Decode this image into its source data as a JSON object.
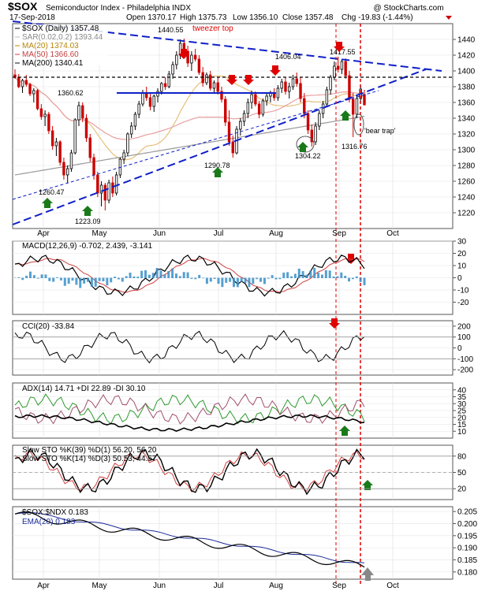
{
  "header": {
    "symbol": "$SOX",
    "name": "Semiconductor Index - Philadelphia INDX",
    "source": "@ StockCharts.com",
    "date": "17-Sep-2018",
    "open": "Open 1370.17",
    "high": "High 1375.73",
    "low": "Low 1356.10",
    "close": "Close 1357.48",
    "chg": "Chg -19.83 (-1.44%)"
  },
  "colors": {
    "up": "#000000",
    "down": "#cc0000",
    "sma20": "#e8c07a",
    "sma50": "#e8a0a0",
    "sma200": "#9a9a9a",
    "trend": "#1020c8",
    "arrow_red": "#e00000",
    "arrow_green": "#1a7a1a",
    "vline": "#dd0000",
    "macd_hist": "#3a8fc8",
    "cci_fill_pos": "#6a8a6a",
    "cci_fill_neg": "#a07070",
    "adx": "#000000",
    "pdi": "#2e9a2e",
    "mdi": "#a0506e",
    "sto_k": "#000000",
    "sto_d": "#d04040",
    "ema": "#1a2a9a"
  },
  "months": [
    "Apr",
    "May",
    "Jun",
    "Jul",
    "Aug",
    "Sep",
    "Oct"
  ],
  "chart_data": [
    {
      "type": "candlestick",
      "title": "$SOX (Daily) 1357.48",
      "ylim": [
        1200,
        1460
      ],
      "yticks": [
        1220,
        1240,
        1260,
        1280,
        1300,
        1320,
        1340,
        1360,
        1380,
        1400,
        1420,
        1440
      ],
      "legend": [
        {
          "label": "SAR(0.02,0.2) 1393.44",
          "color": "#bbbbbb"
        },
        {
          "label": "MA(20) 1374.03",
          "color": "#b8860b"
        },
        {
          "label": "MA(50) 1366.60",
          "color": "#c04040"
        },
        {
          "label": "MA(200) 1340.41",
          "color": "#000000"
        }
      ],
      "annotations": {
        "tweezer": "tweezer top",
        "bear_trap": "'bear trap'",
        "labels": [
          "1440.55",
          "1406.04",
          "1417.55",
          "1360.62",
          "1260.47",
          "1223.09",
          "1290.78",
          "1304.22",
          "1316.76"
        ]
      },
      "candles": [
        [
          1395,
          1402,
          1390,
          1392
        ],
        [
          1392,
          1396,
          1378,
          1380
        ],
        [
          1380,
          1390,
          1372,
          1388
        ],
        [
          1388,
          1395,
          1380,
          1383
        ],
        [
          1383,
          1385,
          1368,
          1371
        ],
        [
          1371,
          1378,
          1360,
          1375
        ],
        [
          1375,
          1377,
          1350,
          1352
        ],
        [
          1352,
          1358,
          1338,
          1342
        ],
        [
          1342,
          1350,
          1330,
          1345
        ],
        [
          1345,
          1348,
          1320,
          1324
        ],
        [
          1324,
          1330,
          1300,
          1305
        ],
        [
          1305,
          1315,
          1292,
          1310
        ],
        [
          1310,
          1312,
          1280,
          1284
        ],
        [
          1284,
          1290,
          1262,
          1268
        ],
        [
          1268,
          1280,
          1258,
          1276
        ],
        [
          1276,
          1300,
          1272,
          1296
        ],
        [
          1296,
          1340,
          1294,
          1338
        ],
        [
          1338,
          1361,
          1330,
          1356
        ],
        [
          1356,
          1360,
          1335,
          1340
        ],
        [
          1340,
          1345,
          1310,
          1315
        ],
        [
          1315,
          1320,
          1285,
          1290
        ],
        [
          1290,
          1295,
          1262,
          1268
        ],
        [
          1268,
          1272,
          1240,
          1245
        ],
        [
          1245,
          1260,
          1228,
          1255
        ],
        [
          1255,
          1258,
          1223,
          1236
        ],
        [
          1236,
          1262,
          1232,
          1258
        ],
        [
          1258,
          1266,
          1240,
          1245
        ],
        [
          1245,
          1272,
          1242,
          1268
        ],
        [
          1268,
          1290,
          1264,
          1288
        ],
        [
          1288,
          1300,
          1282,
          1296
        ],
        [
          1296,
          1322,
          1292,
          1320
        ],
        [
          1320,
          1335,
          1315,
          1330
        ],
        [
          1330,
          1348,
          1325,
          1345
        ],
        [
          1345,
          1362,
          1340,
          1358
        ],
        [
          1358,
          1376,
          1355,
          1372
        ],
        [
          1372,
          1380,
          1362,
          1366
        ],
        [
          1366,
          1372,
          1350,
          1355
        ],
        [
          1355,
          1370,
          1348,
          1368
        ],
        [
          1368,
          1378,
          1360,
          1374
        ],
        [
          1374,
          1386,
          1370,
          1384
        ],
        [
          1384,
          1392,
          1376,
          1380
        ],
        [
          1380,
          1400,
          1378,
          1396
        ],
        [
          1396,
          1412,
          1390,
          1408
        ],
        [
          1408,
          1425,
          1402,
          1420
        ],
        [
          1420,
          1440,
          1415,
          1435
        ],
        [
          1435,
          1441,
          1420,
          1425
        ],
        [
          1425,
          1432,
          1405,
          1410
        ],
        [
          1410,
          1425,
          1400,
          1420
        ],
        [
          1420,
          1428,
          1412,
          1415
        ],
        [
          1415,
          1420,
          1395,
          1398
        ],
        [
          1398,
          1405,
          1380,
          1385
        ],
        [
          1385,
          1398,
          1382,
          1395
        ],
        [
          1395,
          1400,
          1375,
          1378
        ],
        [
          1378,
          1388,
          1372,
          1385
        ],
        [
          1385,
          1392,
          1370,
          1374
        ],
        [
          1374,
          1380,
          1360,
          1364
        ],
        [
          1364,
          1368,
          1330,
          1335
        ],
        [
          1335,
          1350,
          1305,
          1310
        ],
        [
          1310,
          1318,
          1290,
          1296
        ],
        [
          1296,
          1330,
          1294,
          1326
        ],
        [
          1326,
          1340,
          1318,
          1336
        ],
        [
          1336,
          1350,
          1330,
          1346
        ],
        [
          1346,
          1365,
          1340,
          1360
        ],
        [
          1360,
          1375,
          1352,
          1370
        ],
        [
          1370,
          1374,
          1355,
          1358
        ],
        [
          1358,
          1362,
          1340,
          1345
        ],
        [
          1345,
          1365,
          1342,
          1362
        ],
        [
          1362,
          1372,
          1356,
          1368
        ],
        [
          1368,
          1375,
          1360,
          1372
        ],
        [
          1372,
          1378,
          1362,
          1366
        ],
        [
          1366,
          1382,
          1362,
          1378
        ],
        [
          1378,
          1390,
          1372,
          1386
        ],
        [
          1386,
          1392,
          1370,
          1374
        ],
        [
          1374,
          1385,
          1365,
          1380
        ],
        [
          1380,
          1395,
          1376,
          1390
        ],
        [
          1390,
          1398,
          1380,
          1384
        ],
        [
          1384,
          1392,
          1360,
          1365
        ],
        [
          1365,
          1372,
          1340,
          1346
        ],
        [
          1346,
          1350,
          1320,
          1325
        ],
        [
          1325,
          1332,
          1304,
          1310
        ],
        [
          1310,
          1335,
          1306,
          1330
        ],
        [
          1330,
          1350,
          1325,
          1346
        ],
        [
          1346,
          1362,
          1340,
          1358
        ],
        [
          1358,
          1380,
          1354,
          1376
        ],
        [
          1376,
          1395,
          1370,
          1392
        ],
        [
          1392,
          1412,
          1388,
          1406
        ],
        [
          1406,
          1418,
          1398,
          1402
        ],
        [
          1402,
          1415,
          1396,
          1412
        ],
        [
          1412,
          1416,
          1390,
          1394
        ],
        [
          1394,
          1400,
          1360,
          1364
        ],
        [
          1364,
          1372,
          1316,
          1345
        ],
        [
          1345,
          1370,
          1340,
          1365
        ],
        [
          1365,
          1382,
          1360,
          1377
        ],
        [
          1370,
          1376,
          1356,
          1357
        ]
      ]
    },
    {
      "type": "line",
      "title": "MACD(12,26,9) -0.702, 2.439, -3.141",
      "ylim": [
        -30,
        30
      ],
      "yticks": [
        -20,
        -10,
        0,
        10,
        20,
        30
      ]
    },
    {
      "type": "line",
      "title": "CCI(20) -33.84",
      "ylim": [
        -250,
        250
      ],
      "yticks": [
        -200,
        -100,
        0,
        100,
        200
      ]
    },
    {
      "type": "line",
      "title": "ADX(14) 14.71 +DI 22.89 -DI 30.10",
      "ylim": [
        5,
        45
      ],
      "yticks": [
        10,
        15,
        20,
        25,
        30,
        35,
        40
      ]
    },
    {
      "type": "line",
      "title": "Slow STO %K(39) %D(1) 56.20, 56.20",
      "subtitle": "Slow STO %K(14) %D(3) 50.53, 44.57",
      "ylim": [
        0,
        100
      ],
      "yticks": [
        20,
        50,
        80
      ]
    },
    {
      "type": "line",
      "title": "$SOX:$NDX 0.183",
      "subtitle": "EMA(20) 0.183",
      "ylim": [
        0.177,
        0.207
      ],
      "yticks": [
        0.18,
        0.185,
        0.19,
        0.195,
        0.2,
        0.205
      ]
    }
  ]
}
